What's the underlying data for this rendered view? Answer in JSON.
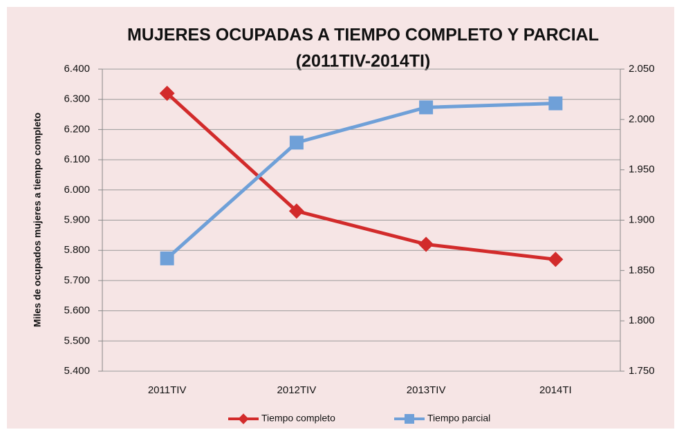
{
  "chart_data": {
    "type": "line",
    "title": "MUJERES OCUPADAS A TIEMPO COMPLETO Y PARCIAL",
    "subtitle": "(2011TIV-2014TI)",
    "y_label": "Miles de ocupados mujeres a tiempo completo",
    "categories": [
      "2011TIV",
      "2012TIV",
      "2013TIV",
      "2014TI"
    ],
    "series": [
      {
        "name": "Tiempo completo",
        "color": "#d22b2b",
        "marker": "diamond",
        "values": [
          6320,
          5930,
          5820,
          5770
        ]
      },
      {
        "name": "Tiempo parcial",
        "color": "#6fa0d8",
        "marker": "square",
        "axis": "y2",
        "values": [
          1862,
          1977,
          2012,
          2016
        ]
      }
    ],
    "ylim": [
      5400,
      6400
    ],
    "yticks": [
      {
        "value": 5400,
        "label": "5.400"
      },
      {
        "value": 5500,
        "label": "5.500"
      },
      {
        "value": 5600,
        "label": "5.600"
      },
      {
        "value": 5700,
        "label": "5.700"
      },
      {
        "value": 5800,
        "label": "5.800"
      },
      {
        "value": 5900,
        "label": "5.900"
      },
      {
        "value": 6000,
        "label": "6.000"
      },
      {
        "value": 6100,
        "label": "6.100"
      },
      {
        "value": 6200,
        "label": "6.200"
      },
      {
        "value": 6300,
        "label": "6.300"
      },
      {
        "value": 6400,
        "label": "6.400"
      }
    ],
    "y2lim": [
      1750,
      2050
    ],
    "y2ticks": [
      {
        "value": 1750,
        "label": "1.750"
      },
      {
        "value": 1800,
        "label": "1.800"
      },
      {
        "value": 1850,
        "label": "1.850"
      },
      {
        "value": 1900,
        "label": "1.900"
      },
      {
        "value": 1950,
        "label": "1.950"
      },
      {
        "value": 2000,
        "label": "2.000"
      },
      {
        "value": 2050,
        "label": "2.050"
      }
    ],
    "grid": true,
    "legend": "bottom"
  }
}
